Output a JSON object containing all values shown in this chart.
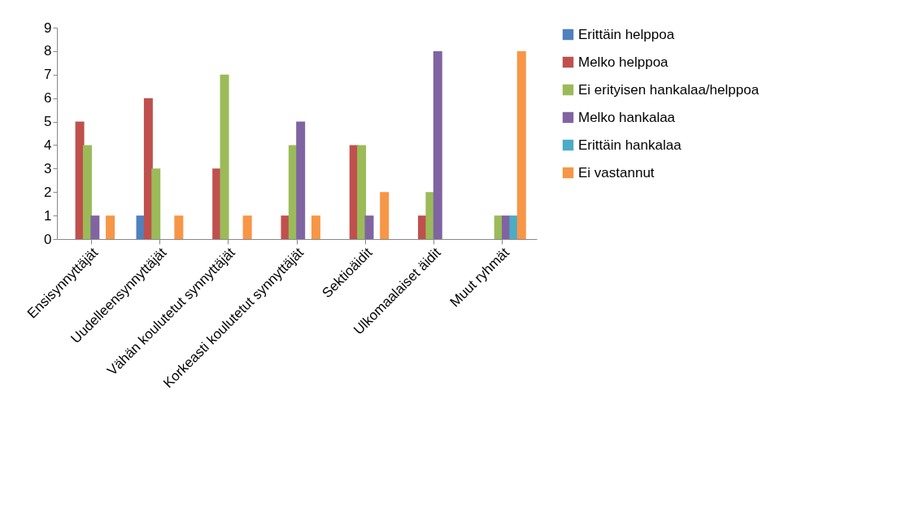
{
  "chart_data": {
    "type": "bar",
    "categories": [
      "Ensisynnyttäjät",
      "Uudelleensynnyttäjät",
      "Vähän koulutetut synnyttäjät",
      "Korkeasti koulutetut synnyttäjät",
      "Sektioäidit",
      "Ulkomaalaiset äidit",
      "Muut ryhmät"
    ],
    "series": [
      {
        "name": "Erittäin helppoa",
        "color": "#4f81bd",
        "values": [
          0,
          1,
          0,
          0,
          0,
          0,
          0
        ]
      },
      {
        "name": "Melko helppoa",
        "color": "#c0504d",
        "values": [
          5,
          6,
          3,
          1,
          4,
          1,
          0
        ]
      },
      {
        "name": "Ei erityisen hankalaa/helppoa",
        "color": "#9bbb59",
        "values": [
          4,
          3,
          7,
          4,
          4,
          2,
          1
        ]
      },
      {
        "name": "Melko hankalaa",
        "color": "#8064a2",
        "values": [
          1,
          0,
          0,
          5,
          1,
          8,
          1
        ]
      },
      {
        "name": "Erittäin hankalaa",
        "color": "#4bacc6",
        "values": [
          0,
          0,
          0,
          0,
          0,
          0,
          1
        ]
      },
      {
        "name": "Ei vastannut",
        "color": "#f79646",
        "values": [
          1,
          1,
          1,
          1,
          2,
          0,
          8
        ]
      }
    ],
    "ylim": [
      0,
      9
    ],
    "yticks": [
      0,
      1,
      2,
      3,
      4,
      5,
      6,
      7,
      8,
      9
    ],
    "grid": false,
    "legend": "right"
  }
}
